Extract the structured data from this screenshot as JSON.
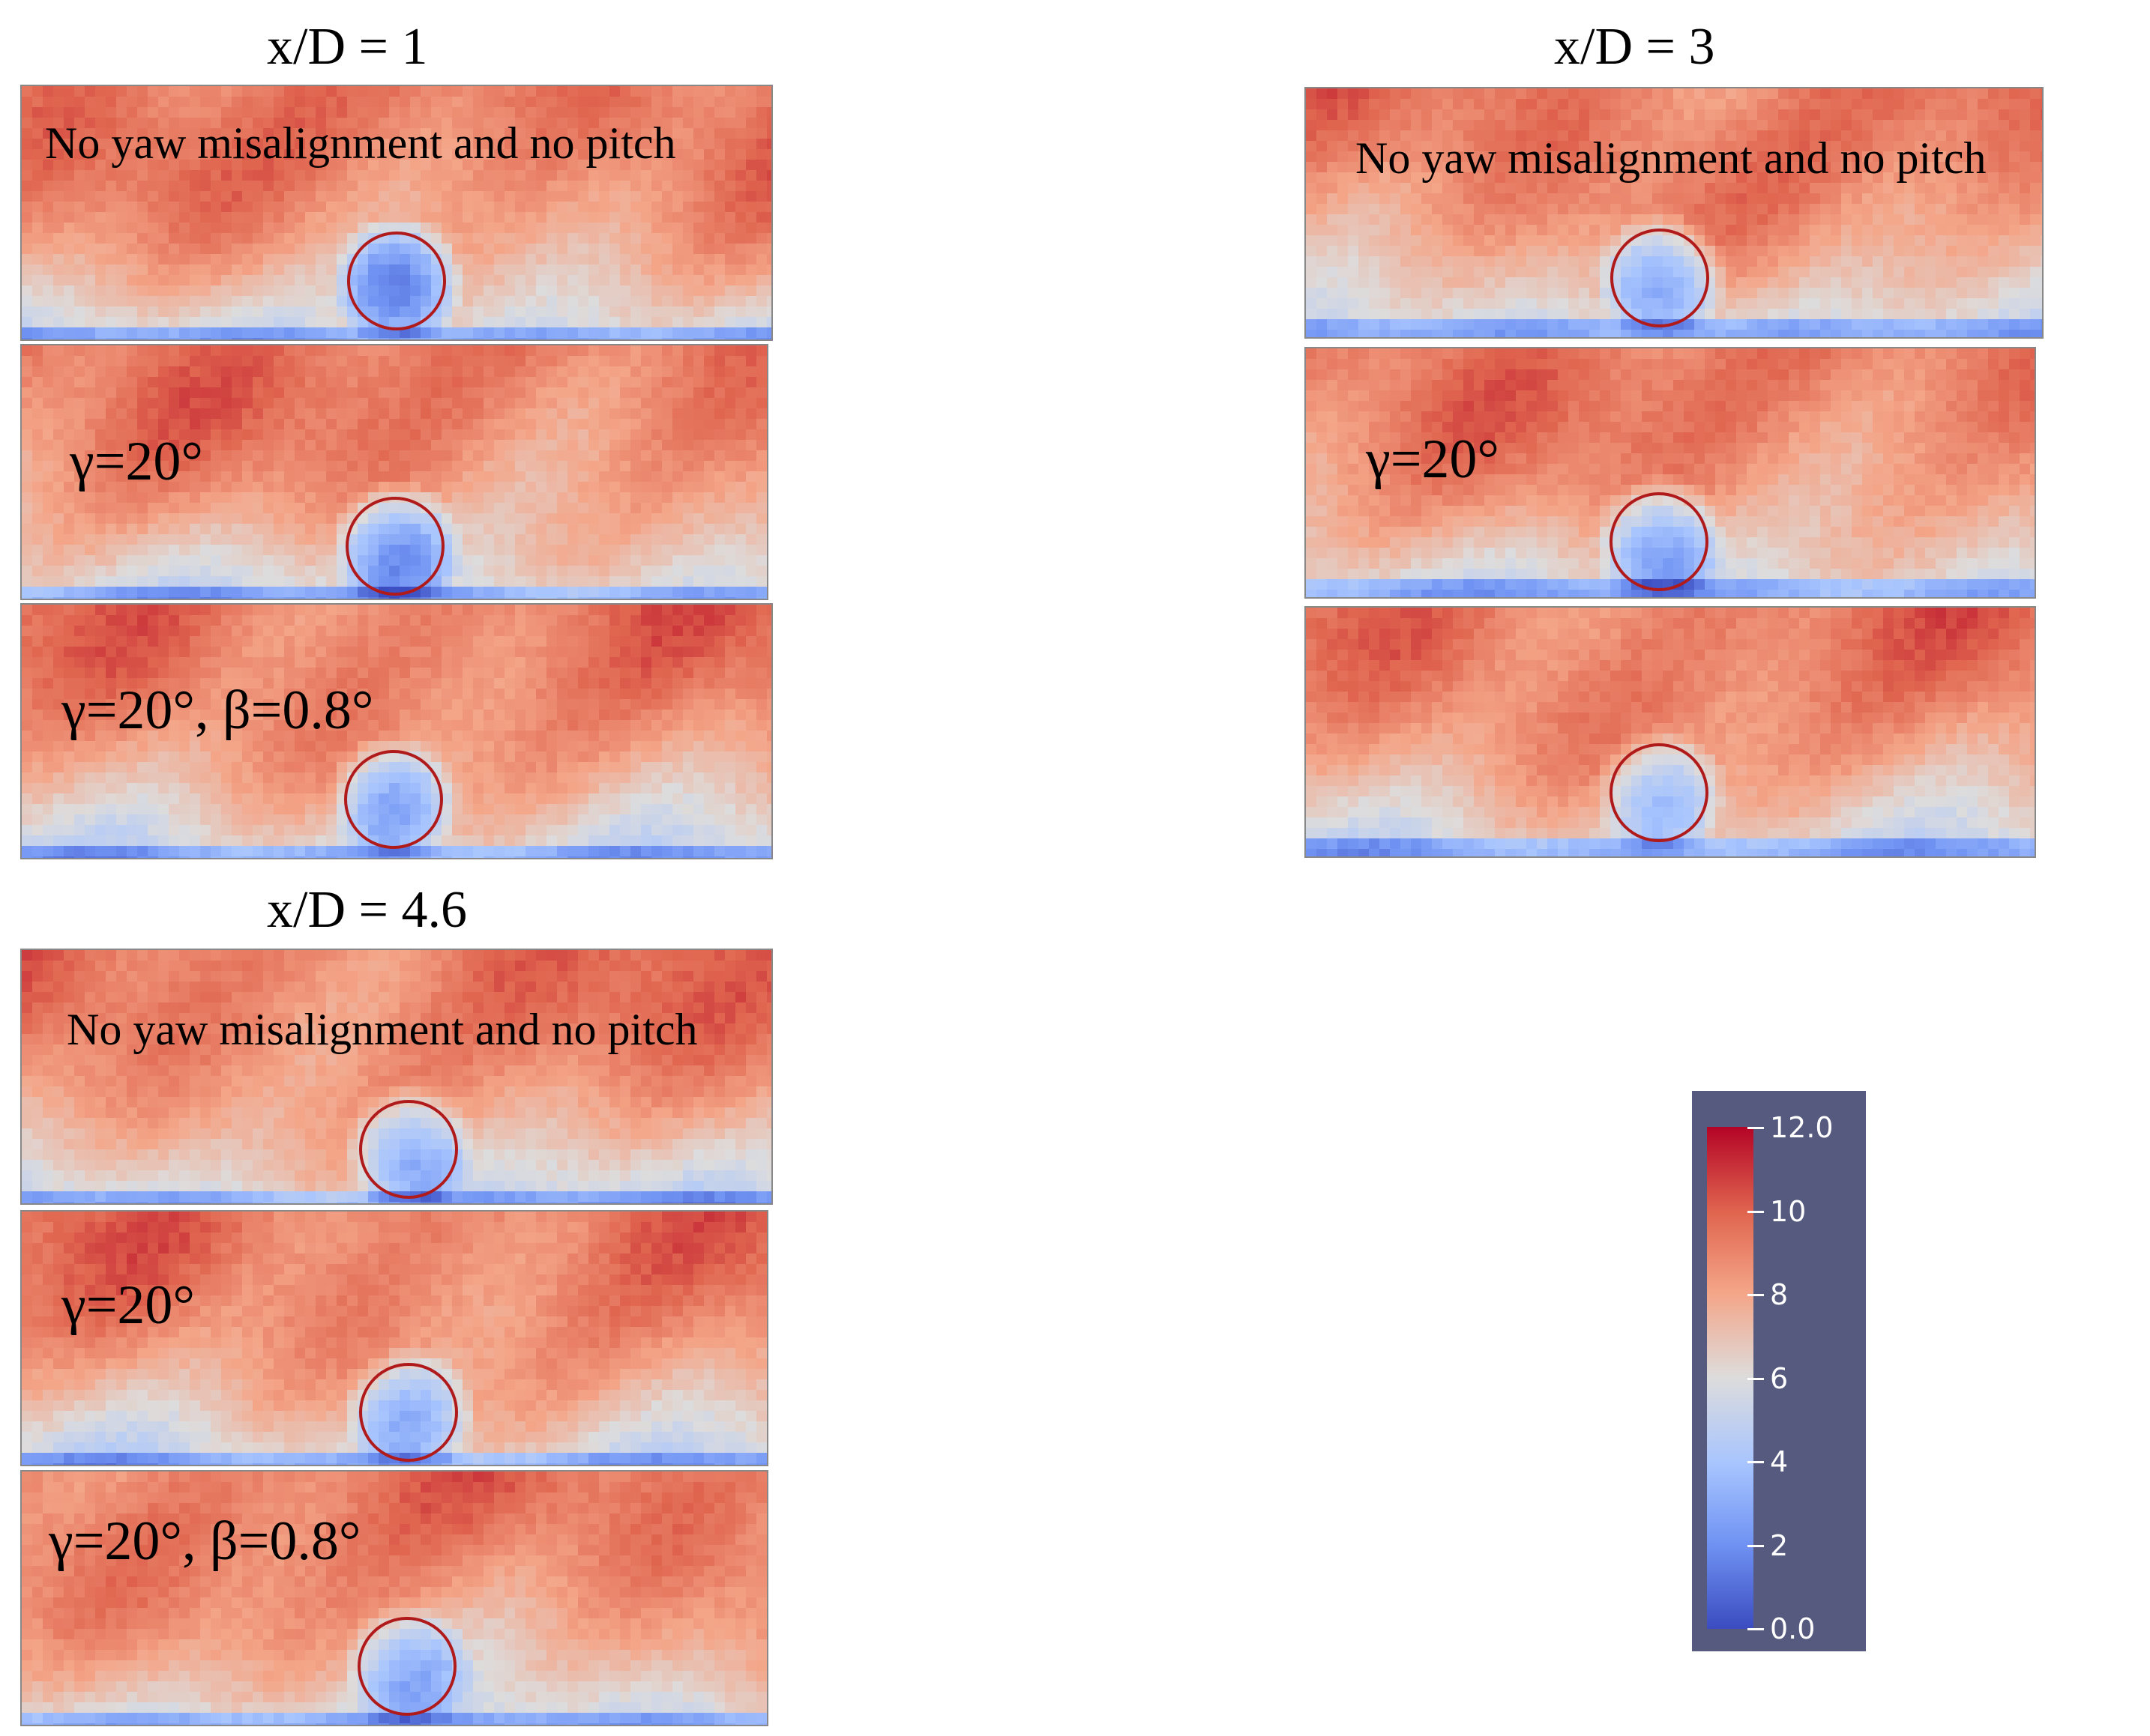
{
  "groups": [
    {
      "title": "x/D = 1",
      "panels": [
        {
          "label": "No yaw misalignment and no pitch",
          "style": "long",
          "wake_strength": 1.0
        },
        {
          "label": "γ=20°",
          "style": "greek",
          "wake_strength": 0.85
        },
        {
          "label": "γ=20°, β=0.8°",
          "style": "greek",
          "wake_strength": 0.8
        }
      ]
    },
    {
      "title": "x/D = 3",
      "panels": [
        {
          "label": "No yaw misalignment and no pitch",
          "style": "long",
          "wake_strength": 0.9
        },
        {
          "label": "γ=20°",
          "style": "greek",
          "wake_strength": 0.8
        },
        {
          "label": "",
          "style": "greek",
          "wake_strength": 0.65
        }
      ]
    },
    {
      "title": "x/D = 4.6",
      "panels": [
        {
          "label": "No yaw misalignment and no pitch",
          "style": "long",
          "wake_strength": 0.75
        },
        {
          "label": "γ=20°",
          "style": "greek",
          "wake_strength": 0.7
        },
        {
          "label": "γ=20°, β=0.8°",
          "style": "greek",
          "wake_strength": 0.55
        }
      ]
    }
  ],
  "colorbar": {
    "min": 0.0,
    "max": 12.0,
    "ticks": [
      "12.0",
      "10",
      "8",
      "6",
      "4",
      "2",
      "0.0"
    ],
    "colors": {
      "high": "#b40426",
      "mid": "#dddddd",
      "low": "#3b4cc0"
    }
  }
}
